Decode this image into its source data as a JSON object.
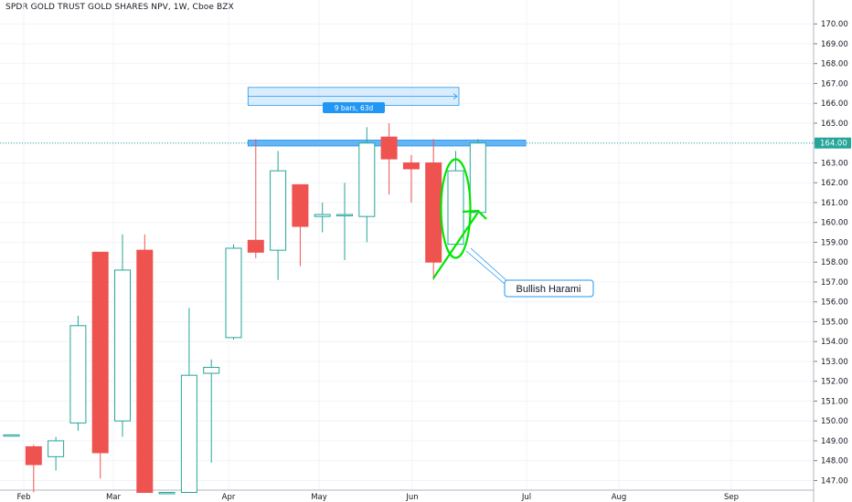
{
  "title": "SPDR GOLD TRUST GOLD SHARES NPV, 1W, Cboe BZX",
  "colors": {
    "up": "#26a69a",
    "down": "#ef5350",
    "grid": "#f0f3fa",
    "axis_text": "#131722",
    "price_line": "#26a69a",
    "range_box_fill": "#bbdefb",
    "range_box_stroke": "#2196f3",
    "resistance_fill": "#64b5f6",
    "annotation_green": "#00e600"
  },
  "chart_data": {
    "type": "candlestick",
    "y_range": [
      146.4,
      170.6
    ],
    "y_ticks": [
      "147.00",
      "148.00",
      "149.00",
      "150.00",
      "151.00",
      "152.00",
      "153.00",
      "154.00",
      "155.00",
      "156.00",
      "157.00",
      "158.00",
      "159.00",
      "160.00",
      "161.00",
      "162.00",
      "163.00",
      "164.00",
      "165.00",
      "166.00",
      "167.00",
      "168.00",
      "169.00",
      "170.00"
    ],
    "x_labels": [
      "Feb",
      "Mar",
      "Apr",
      "May",
      "Jun",
      "Jul",
      "Aug",
      "Sep"
    ],
    "candles": [
      {
        "t": 0,
        "o": 149.3,
        "h": 149.3,
        "l": 149.3,
        "c": 149.3
      },
      {
        "t": 1,
        "o": 148.7,
        "h": 148.8,
        "l": 146.4,
        "c": 147.8
      },
      {
        "t": 2,
        "o": 148.2,
        "h": 149.2,
        "l": 147.5,
        "c": 149.0
      },
      {
        "t": 3,
        "o": 149.9,
        "h": 155.3,
        "l": 149.5,
        "c": 154.8
      },
      {
        "t": 4,
        "o": 158.5,
        "h": 158.5,
        "l": 147.1,
        "c": 148.4
      },
      {
        "t": 5,
        "o": 150.0,
        "h": 159.4,
        "l": 149.2,
        "c": 157.6
      },
      {
        "t": 6,
        "o": 158.6,
        "h": 159.4,
        "l": 146.4,
        "c": 146.4
      },
      {
        "t": 7,
        "o": 146.4,
        "h": 146.4,
        "l": 146.4,
        "c": 146.4
      },
      {
        "t": 8,
        "o": 146.4,
        "h": 155.7,
        "l": 146.4,
        "c": 152.3
      },
      {
        "t": 9,
        "o": 152.4,
        "h": 153.1,
        "l": 147.9,
        "c": 152.7
      },
      {
        "t": 10,
        "o": 154.2,
        "h": 158.9,
        "l": 154.1,
        "c": 158.7
      },
      {
        "t": 11,
        "o": 159.1,
        "h": 164.2,
        "l": 158.2,
        "c": 158.5
      },
      {
        "t": 12,
        "o": 158.6,
        "h": 163.6,
        "l": 157.1,
        "c": 162.6
      },
      {
        "t": 13,
        "o": 161.9,
        "h": 161.9,
        "l": 157.8,
        "c": 159.8
      },
      {
        "t": 14,
        "o": 160.3,
        "h": 161.0,
        "l": 159.5,
        "c": 160.4
      },
      {
        "t": 15,
        "o": 160.4,
        "h": 162.0,
        "l": 158.1,
        "c": 160.4
      },
      {
        "t": 16,
        "o": 160.3,
        "h": 164.8,
        "l": 159.0,
        "c": 164.0
      },
      {
        "t": 17,
        "o": 164.3,
        "h": 165.0,
        "l": 161.4,
        "c": 163.2
      },
      {
        "t": 18,
        "o": 163.0,
        "h": 163.4,
        "l": 161.0,
        "c": 162.7
      },
      {
        "t": 19,
        "o": 163.0,
        "h": 164.2,
        "l": 157.1,
        "c": 158.0
      },
      {
        "t": 20,
        "o": 158.9,
        "h": 163.6,
        "l": 158.8,
        "c": 162.6
      },
      {
        "t": 21,
        "o": 160.5,
        "h": 164.2,
        "l": 160.4,
        "c": 164.0
      }
    ],
    "current_price_label": "164.00",
    "current_price": 164.0,
    "measure_label": "9 bars, 63d",
    "measure_range": {
      "from_t": 11,
      "to_t": 20,
      "price_low": 165.9,
      "price_high": 166.8
    },
    "resistance_band": {
      "from_t": 11,
      "to_t": 23.5,
      "price_low": 163.85,
      "price_high": 164.15
    },
    "annotation": {
      "text": "Bullish Harami",
      "point_t": 21,
      "point_price": 158.5
    }
  }
}
